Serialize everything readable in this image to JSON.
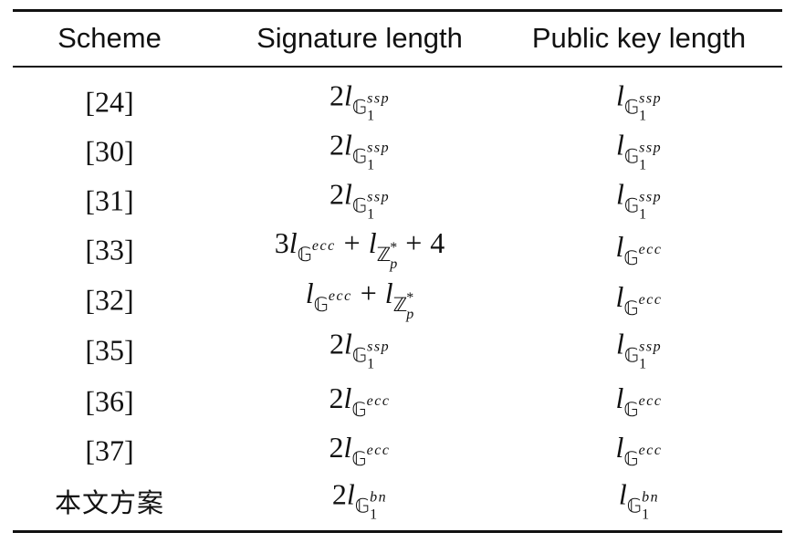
{
  "table": {
    "headers": [
      "Scheme",
      "Signature length",
      "Public key length"
    ],
    "rows": [
      {
        "scheme": "[24]",
        "signature": {
          "terms": [
            {
              "coef": "2",
              "group": "𝔾",
              "sub": "1",
              "sup": "ssp"
            }
          ],
          "suffix": ""
        },
        "public_key": {
          "coef": "",
          "group": "𝔾",
          "sub": "1",
          "sup": "ssp"
        }
      },
      {
        "scheme": "[30]",
        "signature": {
          "terms": [
            {
              "coef": "2",
              "group": "𝔾",
              "sub": "1",
              "sup": "ssp"
            }
          ],
          "suffix": ""
        },
        "public_key": {
          "coef": "",
          "group": "𝔾",
          "sub": "1",
          "sup": "ssp"
        }
      },
      {
        "scheme": "[31]",
        "signature": {
          "terms": [
            {
              "coef": "2",
              "group": "𝔾",
              "sub": "1",
              "sup": "ssp"
            }
          ],
          "suffix": ""
        },
        "public_key": {
          "coef": "",
          "group": "𝔾",
          "sub": "1",
          "sup": "ssp"
        }
      },
      {
        "scheme": "[33]",
        "signature": {
          "terms": [
            {
              "coef": "3",
              "group": "𝔾",
              "sub": "",
              "sup": "ecc"
            },
            {
              "coef": "",
              "group": "ℤ",
              "sub": "p",
              "sup": "*"
            }
          ],
          "suffix": "4"
        },
        "public_key": {
          "coef": "",
          "group": "𝔾",
          "sub": "",
          "sup": "ecc"
        }
      },
      {
        "scheme": "[32]",
        "signature": {
          "terms": [
            {
              "coef": "",
              "group": "𝔾",
              "sub": "",
              "sup": "ecc"
            },
            {
              "coef": "",
              "group": "ℤ",
              "sub": "p",
              "sup": "*"
            }
          ],
          "suffix": ""
        },
        "public_key": {
          "coef": "",
          "group": "𝔾",
          "sub": "",
          "sup": "ecc"
        }
      },
      {
        "scheme": "[35]",
        "signature": {
          "terms": [
            {
              "coef": "2",
              "group": "𝔾",
              "sub": "1",
              "sup": "ssp"
            }
          ],
          "suffix": ""
        },
        "public_key": {
          "coef": "",
          "group": "𝔾",
          "sub": "1",
          "sup": "ssp"
        }
      },
      {
        "scheme": "[36]",
        "signature": {
          "terms": [
            {
              "coef": "2",
              "group": "𝔾",
              "sub": "",
              "sup": "ecc"
            }
          ],
          "suffix": ""
        },
        "public_key": {
          "coef": "",
          "group": "𝔾",
          "sub": "",
          "sup": "ecc"
        }
      },
      {
        "scheme": "[37]",
        "signature": {
          "terms": [
            {
              "coef": "2",
              "group": "𝔾",
              "sub": "",
              "sup": "ecc"
            }
          ],
          "suffix": ""
        },
        "public_key": {
          "coef": "",
          "group": "𝔾",
          "sub": "",
          "sup": "ecc"
        }
      },
      {
        "scheme": "本文方案",
        "signature": {
          "terms": [
            {
              "coef": "2",
              "group": "𝔾",
              "sub": "1",
              "sup": "bn"
            }
          ],
          "suffix": ""
        },
        "public_key": {
          "coef": "",
          "group": "𝔾",
          "sub": "1",
          "sup": "bn"
        }
      }
    ]
  }
}
